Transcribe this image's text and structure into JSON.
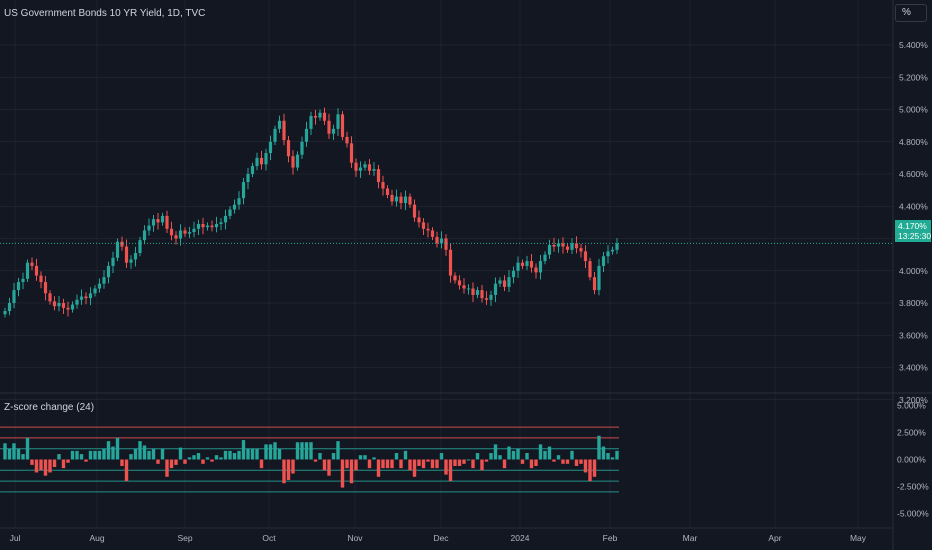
{
  "header": {
    "title": "US Government Bonds 10 YR Yield, 1D, TVC",
    "unit_button": "%"
  },
  "indicator": {
    "label": "Z-score change (24)"
  },
  "last_price": {
    "value": "4.170%",
    "countdown": "13:25:30"
  },
  "colors": {
    "background": "#131722",
    "up": "#26a69a",
    "down": "#ef5350",
    "grid": "#2a2e39",
    "text": "#b2b5be",
    "last_price": "#22ab94"
  },
  "chart_data": [
    {
      "type": "candlestick",
      "title": "US Government Bonds 10 YR Yield, 1D, TVC",
      "ylim": [
        3.0,
        5.6
      ],
      "y_ticks": [
        "5.400%",
        "5.200%",
        "5.000%",
        "4.800%",
        "4.600%",
        "4.400%",
        "4.200%",
        "4.000%",
        "3.800%",
        "3.600%",
        "3.400%",
        "3.200%"
      ],
      "y_tick_values": [
        5.4,
        5.2,
        5.0,
        4.8,
        4.6,
        4.4,
        4.2,
        4.0,
        3.8,
        3.6,
        3.4,
        3.2
      ],
      "x_ticks": [
        "Jul",
        "Aug",
        "Sep",
        "Oct",
        "Nov",
        "Dec",
        "2024",
        "Feb",
        "Mar",
        "Apr",
        "May"
      ],
      "close": [
        3.75,
        3.8,
        3.88,
        3.93,
        3.95,
        4.05,
        4.03,
        3.97,
        3.93,
        3.86,
        3.81,
        3.78,
        3.8,
        3.77,
        3.76,
        3.79,
        3.82,
        3.84,
        3.83,
        3.86,
        3.89,
        3.92,
        3.96,
        4.03,
        4.08,
        4.18,
        4.15,
        4.05,
        4.07,
        4.11,
        4.19,
        4.25,
        4.28,
        4.32,
        4.3,
        4.34,
        4.26,
        4.22,
        4.2,
        4.25,
        4.23,
        4.24,
        4.26,
        4.29,
        4.27,
        4.28,
        4.27,
        4.29,
        4.3,
        4.34,
        4.38,
        4.41,
        4.45,
        4.55,
        4.6,
        4.65,
        4.7,
        4.66,
        4.73,
        4.8,
        4.88,
        4.93,
        4.81,
        4.71,
        4.64,
        4.72,
        4.8,
        4.88,
        4.96,
        4.95,
        4.98,
        4.93,
        4.85,
        4.88,
        4.97,
        4.83,
        4.79,
        4.67,
        4.62,
        4.64,
        4.66,
        4.62,
        4.63,
        4.55,
        4.51,
        4.47,
        4.43,
        4.46,
        4.42,
        4.46,
        4.41,
        4.33,
        4.3,
        4.26,
        4.25,
        4.21,
        4.17,
        4.2,
        4.13,
        3.97,
        3.94,
        3.91,
        3.89,
        3.89,
        3.85,
        3.88,
        3.83,
        3.82,
        3.85,
        3.92,
        3.94,
        3.9,
        3.96,
        4.0,
        4.05,
        4.03,
        4.06,
        4.02,
        3.99,
        4.06,
        4.1,
        4.16,
        4.15,
        4.17,
        4.15,
        4.13,
        4.17,
        4.14,
        4.12,
        4.06,
        3.96,
        3.88,
        4.03,
        4.09,
        4.12,
        4.13,
        4.17
      ]
    },
    {
      "type": "bar",
      "title": "Z-score change (24)",
      "ylim": [
        -5.5,
        5.5
      ],
      "y_ticks": [
        "5.000%",
        "2.500%",
        "0.000%",
        "-2.500%",
        "-5.000%"
      ],
      "y_tick_values": [
        5.0,
        2.5,
        0.0,
        -2.5,
        -5.0
      ],
      "reference_lines": [
        {
          "value": 3.0,
          "color": "#ef5350"
        },
        {
          "value": 2.0,
          "color": "#ef5350"
        },
        {
          "value": 1.0,
          "color": "#26a69a"
        },
        {
          "value": -1.0,
          "color": "#26a69a"
        },
        {
          "value": -2.0,
          "color": "#26a69a"
        },
        {
          "value": -3.0,
          "color": "#26a69a"
        }
      ],
      "values": [
        1.5,
        1.0,
        1.5,
        1.0,
        0.5,
        2.0,
        -0.5,
        -1.2,
        -1.0,
        -1.5,
        -1.2,
        -0.7,
        0.5,
        -0.8,
        -0.3,
        0.8,
        0.8,
        0.5,
        -0.2,
        0.8,
        0.8,
        0.8,
        1.0,
        1.7,
        1.2,
        2.0,
        -0.6,
        -2.0,
        0.5,
        1.0,
        1.7,
        1.3,
        0.8,
        1.0,
        -0.4,
        1.0,
        -1.6,
        -0.8,
        -0.5,
        1.1,
        -0.4,
        0.2,
        0.4,
        0.6,
        -0.4,
        0.2,
        -0.2,
        0.4,
        0.2,
        0.8,
        0.8,
        0.6,
        0.8,
        1.8,
        1.0,
        1.0,
        1.0,
        -0.8,
        1.4,
        1.4,
        1.6,
        1.0,
        -2.2,
        -1.9,
        -1.3,
        1.6,
        1.6,
        1.6,
        1.6,
        -0.2,
        0.6,
        -1.0,
        -1.5,
        0.6,
        1.7,
        -2.6,
        -0.8,
        -2.2,
        -1.0,
        0.4,
        0.4,
        -0.8,
        0.2,
        -1.6,
        -0.8,
        -0.8,
        -0.8,
        0.6,
        -0.8,
        0.8,
        -1.0,
        -1.6,
        -0.6,
        -0.8,
        -0.2,
        -0.8,
        -0.8,
        0.6,
        -1.4,
        -2.0,
        -0.6,
        -0.6,
        -0.4,
        0.0,
        -0.8,
        0.6,
        -1.0,
        -0.2,
        0.6,
        1.4,
        0.4,
        -0.8,
        1.2,
        0.8,
        1.0,
        -0.4,
        0.6,
        -0.8,
        -0.6,
        1.4,
        0.8,
        1.2,
        -0.2,
        0.4,
        -0.4,
        -0.4,
        0.8,
        -0.6,
        -0.4,
        -1.2,
        -2.0,
        -1.6,
        2.2,
        1.2,
        0.6,
        0.2,
        0.8
      ]
    }
  ]
}
